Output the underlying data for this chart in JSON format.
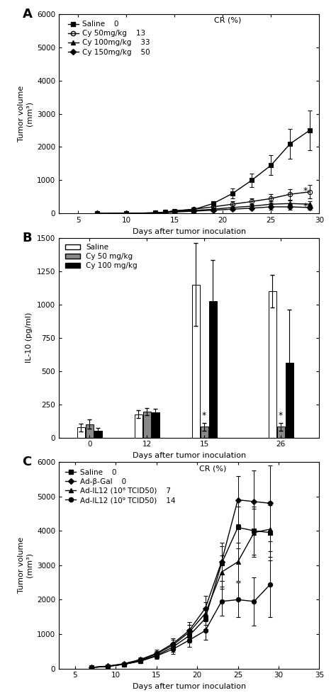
{
  "panel_A": {
    "title_label": "A",
    "ylabel": "Tumor volume\n(mm³)",
    "xlabel": "Days after tumor inoculation",
    "ylim": [
      0,
      6000
    ],
    "xlim": [
      3,
      30
    ],
    "xticks": [
      5,
      10,
      15,
      20,
      25,
      30
    ],
    "yticks": [
      0,
      1000,
      2000,
      3000,
      4000,
      5000,
      6000
    ],
    "cr_text": "CR (%)",
    "series": [
      {
        "label": "Saline",
        "cr": "0",
        "marker": "s",
        "fillstyle": "full",
        "x": [
          7,
          10,
          13,
          14,
          15,
          17,
          19,
          21,
          23,
          25,
          27,
          29
        ],
        "y": [
          0,
          5,
          20,
          40,
          80,
          120,
          300,
          600,
          1000,
          1450,
          2100,
          2500
        ],
        "yerr": [
          2,
          3,
          8,
          15,
          25,
          40,
          80,
          150,
          200,
          300,
          450,
          600
        ]
      },
      {
        "label": "Cy 50mg/kg",
        "cr": "13",
        "marker": "o",
        "fillstyle": "none",
        "x": [
          7,
          10,
          13,
          14,
          15,
          17,
          19,
          21,
          23,
          25,
          27,
          29
        ],
        "y": [
          0,
          5,
          20,
          40,
          80,
          130,
          200,
          280,
          360,
          450,
          580,
          650
        ],
        "yerr": [
          2,
          3,
          10,
          15,
          25,
          40,
          60,
          80,
          100,
          130,
          160,
          200
        ]
      },
      {
        "label": "Cy 100mg/kg",
        "cr": "33",
        "marker": "^",
        "fillstyle": "full",
        "x": [
          7,
          10,
          13,
          14,
          15,
          17,
          19,
          21,
          23,
          25,
          27,
          29
        ],
        "y": [
          0,
          5,
          20,
          35,
          60,
          90,
          130,
          180,
          220,
          280,
          300,
          280
        ],
        "yerr": [
          2,
          3,
          8,
          12,
          20,
          30,
          40,
          60,
          70,
          100,
          100,
          100
        ]
      },
      {
        "label": "Cy 150mg/kg",
        "cr": "50",
        "marker": "D",
        "fillstyle": "full",
        "x": [
          7,
          10,
          13,
          14,
          15,
          17,
          19,
          21,
          23,
          25,
          27,
          29
        ],
        "y": [
          0,
          5,
          15,
          25,
          45,
          70,
          100,
          130,
          160,
          200,
          200,
          180
        ],
        "yerr": [
          2,
          2,
          5,
          8,
          15,
          22,
          35,
          45,
          55,
          80,
          80,
          70
        ]
      }
    ]
  },
  "panel_B": {
    "title_label": "B",
    "ylabel": "IL-10 (pg/ml)",
    "xlabel": "Days after tumor inoculation",
    "ylim": [
      0,
      1500
    ],
    "yticks": [
      0,
      250,
      500,
      750,
      1000,
      1250,
      1500
    ],
    "day_labels": [
      "0",
      "12",
      "15",
      "26"
    ],
    "series": [
      {
        "label": "Saline",
        "color": "white",
        "edgecolor": "black",
        "values": [
          75,
          175,
          1150,
          1100
        ],
        "errors": [
          30,
          28,
          310,
          120
        ],
        "star": [
          false,
          false,
          false,
          false
        ]
      },
      {
        "label": "Cy 50 mg/kg",
        "color": "#888888",
        "edgecolor": "black",
        "values": [
          100,
          195,
          80,
          80
        ],
        "errors": [
          35,
          28,
          28,
          28
        ],
        "star": [
          false,
          false,
          true,
          true
        ]
      },
      {
        "label": "Cy 100 mg/kg",
        "color": "black",
        "edgecolor": "black",
        "values": [
          50,
          190,
          1025,
          560
        ],
        "errors": [
          20,
          28,
          310,
          400
        ],
        "star": [
          false,
          false,
          false,
          false
        ]
      }
    ]
  },
  "panel_C": {
    "title_label": "C",
    "ylabel": "Tumor volume\n(mm³)",
    "xlabel": "Days after tumor inoculation",
    "ylim": [
      0,
      6000
    ],
    "xlim": [
      3,
      35
    ],
    "xticks": [
      5,
      10,
      15,
      20,
      25,
      30,
      35
    ],
    "yticks": [
      0,
      1000,
      2000,
      3000,
      4000,
      5000,
      6000
    ],
    "cr_text": "CR (%)",
    "series": [
      {
        "label": "Saline",
        "cr": "0",
        "marker": "s",
        "fillstyle": "full",
        "x": [
          7,
          9,
          11,
          13,
          15,
          17,
          19,
          21,
          23,
          25,
          27,
          29
        ],
        "y": [
          30,
          60,
          120,
          220,
          380,
          620,
          950,
          1450,
          3050,
          4100,
          4000,
          3950
        ],
        "yerr": [
          10,
          15,
          30,
          50,
          80,
          130,
          200,
          300,
          500,
          600,
          700,
          800
        ]
      },
      {
        "label": "Ad-β-Gal",
        "cr": "0",
        "marker": "D",
        "fillstyle": "full",
        "x": [
          7,
          9,
          11,
          13,
          15,
          17,
          19,
          21,
          23,
          25,
          27,
          29
        ],
        "y": [
          30,
          70,
          140,
          260,
          440,
          720,
          1100,
          1750,
          3100,
          4900,
          4850,
          4800
        ],
        "yerr": [
          10,
          18,
          35,
          60,
          100,
          160,
          240,
          360,
          550,
          700,
          900,
          1100
        ]
      },
      {
        "label": "Ad-IL12 (10⁸ TCID50)",
        "cr": "7",
        "marker": "^",
        "fillstyle": "full",
        "x": [
          7,
          9,
          11,
          13,
          15,
          17,
          19,
          21,
          23,
          25,
          27,
          29
        ],
        "y": [
          30,
          65,
          130,
          240,
          420,
          680,
          1050,
          1600,
          2800,
          3100,
          3950,
          4050
        ],
        "yerr": [
          10,
          16,
          32,
          55,
          90,
          145,
          220,
          330,
          480,
          560,
          700,
          800
        ]
      },
      {
        "label": "Ad-IL12 (10⁹ TCID50)",
        "cr": "14",
        "marker": "o",
        "fillstyle": "full",
        "x": [
          7,
          9,
          11,
          13,
          15,
          17,
          19,
          21,
          23,
          25,
          27,
          29
        ],
        "y": [
          30,
          60,
          120,
          210,
          360,
          560,
          820,
          1100,
          1950,
          2000,
          1950,
          2450
        ],
        "yerr": [
          10,
          15,
          28,
          48,
          80,
          130,
          190,
          270,
          420,
          500,
          700,
          950
        ]
      }
    ]
  }
}
